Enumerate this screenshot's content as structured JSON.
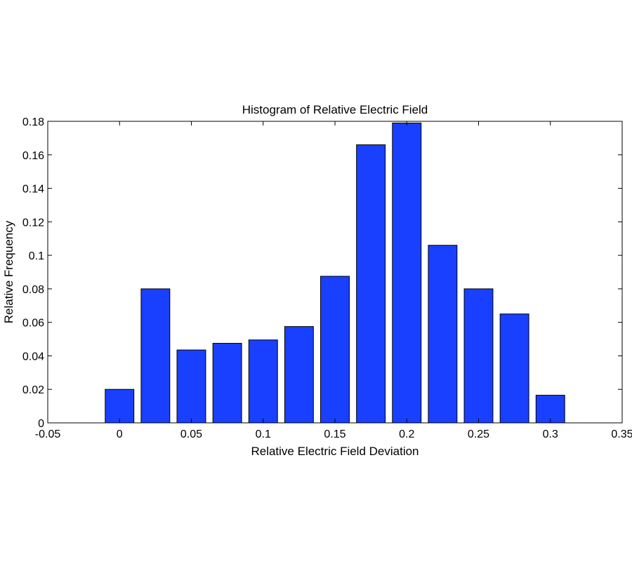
{
  "chart_data": {
    "type": "bar",
    "title": "Histogram of Relative Electric Field",
    "xlabel": "Relative Electric Field Deviation",
    "ylabel": "Relative Frequency",
    "xlim": [
      -0.05,
      0.35
    ],
    "ylim": [
      0,
      0.18
    ],
    "xticks": [
      "-0.05",
      "0",
      "0.05",
      "0.1",
      "0.15",
      "0.2",
      "0.25",
      "0.3",
      "0.35"
    ],
    "yticks": [
      "0",
      "0.02",
      "0.04",
      "0.06",
      "0.08",
      "0.1",
      "0.12",
      "0.14",
      "0.16",
      "0.18"
    ],
    "bin_width": 0.025,
    "x": [
      0.0,
      0.025,
      0.05,
      0.075,
      0.1,
      0.125,
      0.15,
      0.175,
      0.2,
      0.225,
      0.25,
      0.275,
      0.3
    ],
    "values": [
      0.02,
      0.08,
      0.0435,
      0.0475,
      0.0495,
      0.0575,
      0.0875,
      0.166,
      0.179,
      0.106,
      0.08,
      0.065,
      0.0165
    ],
    "bar_color": "#1a40ff",
    "grid": false,
    "legend": "none"
  }
}
